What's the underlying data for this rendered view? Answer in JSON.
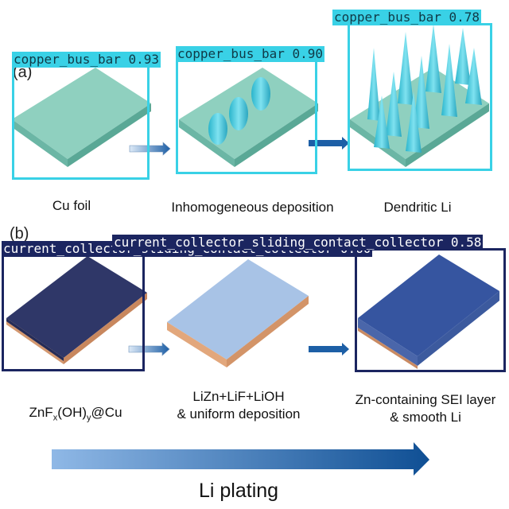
{
  "panels": {
    "a_label": "(a)",
    "b_label": "(b)"
  },
  "captions": {
    "a1": "Cu foil",
    "a2": "Inhomogeneous deposition",
    "a3": "Dendritic Li",
    "b1_main": "ZnF",
    "b1_sub1": "x",
    "b1_mid": "(OH)",
    "b1_sub2": "y",
    "b1_end": "@Cu",
    "b2_line1": "LiZn+LiF+LiOH",
    "b2_line2": "& uniform deposition",
    "b3_line1": "Zn-containing SEI layer",
    "b3_line2": "& smooth Li"
  },
  "bottom": {
    "title": "Li plating"
  },
  "detections": [
    {
      "label": "copper_bus_bar",
      "score": "0.93"
    },
    {
      "label": "copper_bus_bar",
      "score": "0.90"
    },
    {
      "label": "copper_bus_bar",
      "score": "0.78"
    },
    {
      "label": "current_collector_sliding_contact_collector",
      "score": "0.60"
    },
    {
      "label": "current_collector_sliding_contact_collector",
      "score": "0.58"
    }
  ],
  "colors": {
    "cyan_box": "#39d1e6",
    "navy_box": "#1b2560",
    "foil": "#8ecfc0",
    "zn_plate": "#2d3566",
    "lizn_plate": "#a9c4e4",
    "sei_plate": "#33509a",
    "copper_edge": "#d89b70"
  }
}
